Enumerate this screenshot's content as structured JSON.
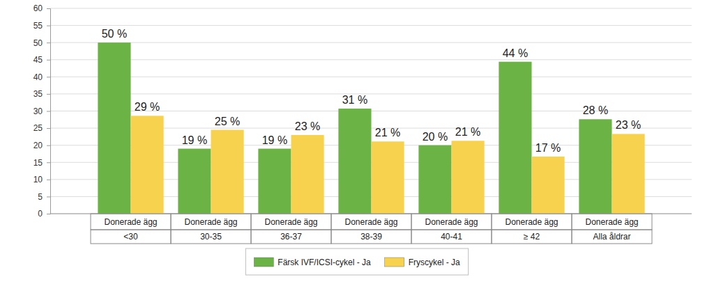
{
  "chart_data": {
    "type": "bar",
    "categories": [
      [
        "Donerade ägg",
        "<30"
      ],
      [
        "Donerade ägg",
        "30-35"
      ],
      [
        "Donerade ägg",
        "36-37"
      ],
      [
        "Donerade ägg",
        "38-39"
      ],
      [
        "Donerade ägg",
        "40-41"
      ],
      [
        "Donerade ägg",
        "≥ 42"
      ],
      [
        "Donerade ägg",
        "Alla åldrar"
      ]
    ],
    "series": [
      {
        "name": "Färsk IVF/ICSI-cykel - Ja",
        "color": "#6ab344",
        "values": [
          50,
          19,
          19,
          30.7,
          20,
          44.4,
          27.6
        ],
        "value_labels": [
          "50 %",
          "19 %",
          "19 %",
          "31 %",
          "20 %",
          "44 %",
          "28 %"
        ]
      },
      {
        "name": "Fryscykel - Ja",
        "color": "#f7d24e",
        "values": [
          28.6,
          24.5,
          23,
          21.1,
          21.3,
          16.7,
          23.3
        ],
        "value_labels": [
          "29 %",
          "25 %",
          "23 %",
          "21 %",
          "21 %",
          "17 %",
          "23 %"
        ]
      }
    ],
    "ylim": [
      0,
      60
    ],
    "yticks": [
      0,
      5,
      10,
      15,
      20,
      25,
      30,
      35,
      40,
      45,
      50,
      55,
      60
    ],
    "grid": true,
    "legend": "bottom",
    "data_labels": true
  }
}
